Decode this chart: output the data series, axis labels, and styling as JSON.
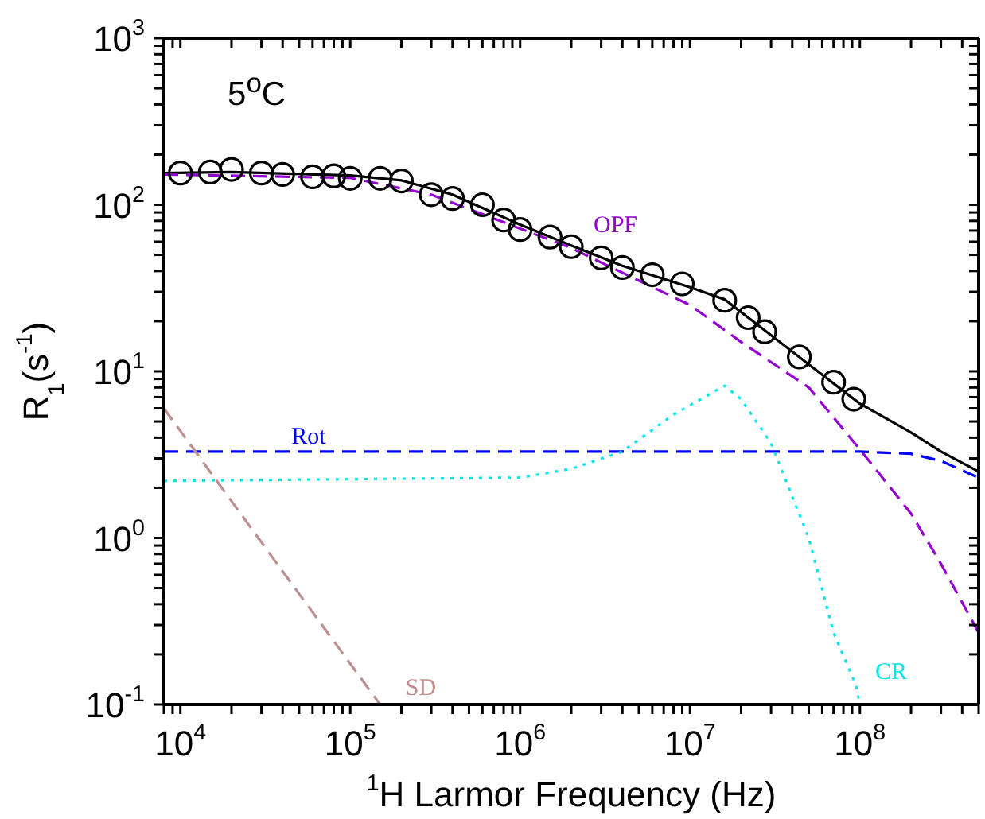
{
  "chart_data": {
    "type": "line",
    "title": "5$^{o}$C",
    "xlabel": "$^{1}$H Larmor Frequency (Hz)",
    "ylabel": "R$_{1}$(s$^{-1}$)",
    "log": "xy",
    "xlim": [
      8000,
      500000000
    ],
    "ylim": [
      0.1,
      1000
    ],
    "xticks": [
      {
        "value": 8000,
        "label": null
      },
      {
        "value": 9000,
        "label": null
      },
      {
        "value": 10000,
        "label": "10$^{4}$"
      },
      {
        "value": 20000,
        "label": null
      },
      {
        "value": 30000,
        "label": null
      },
      {
        "value": 40000,
        "label": null
      },
      {
        "value": 50000,
        "label": null
      },
      {
        "value": 60000,
        "label": null
      },
      {
        "value": 70000,
        "label": null
      },
      {
        "value": 80000,
        "label": null
      },
      {
        "value": 90000,
        "label": null
      },
      {
        "value": 100000,
        "label": "10$^{5}$"
      },
      {
        "value": 200000,
        "label": null
      },
      {
        "value": 300000,
        "label": null
      },
      {
        "value": 400000,
        "label": null
      },
      {
        "value": 500000,
        "label": null
      },
      {
        "value": 600000,
        "label": null
      },
      {
        "value": 700000,
        "label": null
      },
      {
        "value": 800000,
        "label": null
      },
      {
        "value": 900000,
        "label": null
      },
      {
        "value": 1000000,
        "label": "10$^{6}$"
      },
      {
        "value": 2000000,
        "label": null
      },
      {
        "value": 3000000,
        "label": null
      },
      {
        "value": 4000000,
        "label": null
      },
      {
        "value": 5000000,
        "label": null
      },
      {
        "value": 6000000,
        "label": null
      },
      {
        "value": 7000000,
        "label": null
      },
      {
        "value": 8000000,
        "label": null
      },
      {
        "value": 9000000,
        "label": null
      },
      {
        "value": 10000000,
        "label": "10$^{7}$"
      },
      {
        "value": 20000000,
        "label": null
      },
      {
        "value": 30000000,
        "label": null
      },
      {
        "value": 40000000,
        "label": null
      },
      {
        "value": 50000000,
        "label": null
      },
      {
        "value": 60000000,
        "label": null
      },
      {
        "value": 70000000,
        "label": null
      },
      {
        "value": 80000000,
        "label": null
      },
      {
        "value": 90000000,
        "label": null
      },
      {
        "value": 100000000,
        "label": "10$^{8}$"
      },
      {
        "value": 200000000,
        "label": null
      },
      {
        "value": 300000000,
        "label": null
      },
      {
        "value": 400000000,
        "label": null
      },
      {
        "value": 500000000,
        "label": null
      }
    ],
    "yticks": [
      {
        "value": 0.1,
        "label": "10$^{-1}$"
      },
      {
        "value": 0.2,
        "label": null
      },
      {
        "value": 0.3,
        "label": null
      },
      {
        "value": 0.4,
        "label": null
      },
      {
        "value": 0.5,
        "label": null
      },
      {
        "value": 0.6,
        "label": null
      },
      {
        "value": 0.7,
        "label": null
      },
      {
        "value": 0.8,
        "label": null
      },
      {
        "value": 0.9,
        "label": null
      },
      {
        "value": 1,
        "label": "10$^{0}$"
      },
      {
        "value": 2,
        "label": null
      },
      {
        "value": 3,
        "label": null
      },
      {
        "value": 4,
        "label": null
      },
      {
        "value": 5,
        "label": null
      },
      {
        "value": 6,
        "label": null
      },
      {
        "value": 7,
        "label": null
      },
      {
        "value": 8,
        "label": null
      },
      {
        "value": 9,
        "label": null
      },
      {
        "value": 10,
        "label": "10$^{1}$"
      },
      {
        "value": 20,
        "label": null
      },
      {
        "value": 30,
        "label": null
      },
      {
        "value": 40,
        "label": null
      },
      {
        "value": 50,
        "label": null
      },
      {
        "value": 60,
        "label": null
      },
      {
        "value": 70,
        "label": null
      },
      {
        "value": 80,
        "label": null
      },
      {
        "value": 90,
        "label": null
      },
      {
        "value": 100,
        "label": "10$^{2}$"
      },
      {
        "value": 200,
        "label": null
      },
      {
        "value": 300,
        "label": null
      },
      {
        "value": 400,
        "label": null
      },
      {
        "value": 500,
        "label": null
      },
      {
        "value": 600,
        "label": null
      },
      {
        "value": 700,
        "label": null
      },
      {
        "value": 800,
        "label": null
      },
      {
        "value": 900,
        "label": null
      },
      {
        "value": 1000,
        "label": "10$^{3}$"
      }
    ],
    "series": [
      {
        "type": "scatter",
        "color": "#000000",
        "marker": "circle",
        "x": [
          10000,
          15000,
          20000,
          30000,
          40000,
          60000,
          80000,
          100000,
          150000,
          200000,
          300000,
          400000,
          600000,
          800000,
          1000000,
          1500000,
          2000000,
          3000000,
          4000000,
          6000000,
          9000000,
          16000000,
          22000000,
          27500000,
          44000000,
          70000000,
          92000000
        ],
        "values": [
          155,
          157,
          163,
          155,
          152,
          147,
          149,
          144,
          144,
          139,
          115,
          109,
          100,
          81,
          71,
          64,
          56,
          48,
          42,
          38,
          33.5,
          26.7,
          21,
          17.3,
          12.2,
          8.6,
          6.8
        ]
      },
      {
        "color": "#000000",
        "line_style": "solid",
        "marker": "none",
        "x": [
          8000,
          20000,
          100000,
          200000,
          400000,
          1000000,
          2000000,
          4000000,
          10000000,
          16000000,
          25000000,
          50000000,
          100000000,
          200000000,
          300000000,
          500000000
        ],
        "values": [
          155,
          157,
          150,
          140,
          115,
          76,
          57,
          43,
          32,
          27,
          19,
          11,
          6.4,
          4.3,
          3.3,
          2.5
        ]
      },
      {
        "name": "OPF",
        "color": "#9400d3",
        "line_style": "dashed",
        "marker": "none",
        "x": [
          8000,
          100000,
          300000,
          1000000,
          2000000,
          3000000,
          10000000,
          20000000,
          50000000,
          100000000,
          200000000,
          300000000,
          500000000
        ],
        "values": [
          152,
          145,
          115,
          72,
          55,
          45,
          25,
          15,
          8,
          3.4,
          1.4,
          0.7,
          0.27
        ]
      },
      {
        "name": "Rot",
        "color": "#0000ff",
        "line_style": "dashed",
        "marker": "none",
        "x": [
          8000,
          45000,
          100000000,
          200000000,
          300000000,
          500000000
        ],
        "values": [
          3.3,
          3.3,
          3.3,
          3.2,
          2.9,
          2.3
        ]
      },
      {
        "name": "CR",
        "color": "#00e5ee",
        "line_style": "dotted",
        "marker": "none",
        "x": [
          8000,
          1000000,
          2000000,
          4000000,
          8000000,
          16000000,
          20000000,
          30000000,
          50000000,
          70000000,
          95000000,
          100000000
        ],
        "values": [
          2.2,
          2.3,
          2.6,
          3.3,
          5.5,
          8.2,
          6.8,
          3.7,
          1.0,
          0.27,
          0.13,
          0.1
        ]
      },
      {
        "name": "SD",
        "color": "#bc8f8f",
        "line_style": "dashed",
        "marker": "none",
        "x": [
          8000,
          40000,
          150000
        ],
        "values": [
          6,
          0.63,
          0.1
        ]
      }
    ]
  }
}
